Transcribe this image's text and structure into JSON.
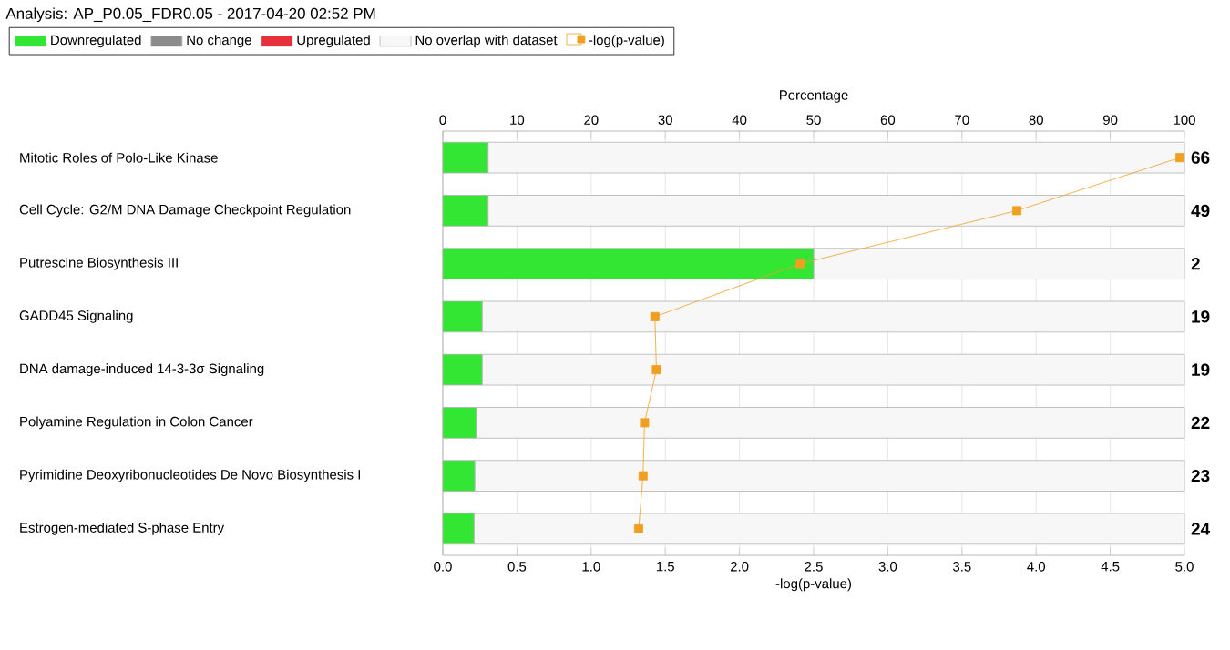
{
  "chart_data": {
    "type": "bar",
    "orientation": "horizontal",
    "stacked": true,
    "title": "Analysis: AP_P0.05_FDR0.05 - 2017-04-20 02:52 PM",
    "xlabel": "Percentage",
    "x2label": "-log(p-value)",
    "categories": [
      "Mitotic Roles of Polo-Like Kinase",
      "Cell Cycle: G2/M DNA Damage Checkpoint Regulation",
      "Putrescine Biosynthesis III",
      "GADD45 Signaling",
      "DNA damage-induced 14-3-3σ Signaling",
      "Polyamine Regulation in Colon Cancer",
      "Pyrimidine Deoxyribonucleotides De Novo Biosynthesis I",
      "Estrogen-mediated S-phase Entry"
    ],
    "series": [
      {
        "name": "Downregulated",
        "color": "#33e633",
        "values": [
          6.1,
          6.1,
          50,
          5.3,
          5.3,
          4.5,
          4.3,
          4.2
        ]
      },
      {
        "name": "No change",
        "color": "#8c8c8c",
        "values": [
          0,
          0,
          0,
          0,
          0,
          0,
          0,
          0
        ]
      },
      {
        "name": "Upregulated",
        "color": "#e8303a",
        "values": [
          0,
          0,
          0,
          0,
          0,
          0,
          0,
          0
        ]
      },
      {
        "name": "No overlap with dataset",
        "color": "#f7f7f7",
        "values": [
          93.9,
          93.9,
          50,
          94.7,
          94.7,
          95.5,
          95.7,
          95.8
        ]
      },
      {
        "name": "-log(p-value)",
        "type": "line",
        "axis": "x2",
        "color": "#f0a020",
        "values": [
          4.97,
          3.87,
          2.41,
          1.43,
          1.44,
          1.36,
          1.35,
          1.32
        ]
      }
    ],
    "annotations": [
      "66",
      "49",
      "2",
      "19",
      "19",
      "22",
      "23",
      "24"
    ],
    "xlim": [
      0,
      100
    ],
    "xticks": [
      0,
      10,
      20,
      30,
      40,
      50,
      60,
      70,
      80,
      90,
      100
    ],
    "x2lim": [
      0,
      5
    ],
    "x2ticks": [
      {
        "value": 0,
        "label": "0.0"
      },
      {
        "value": 0.5,
        "label": "0.5"
      },
      {
        "value": 1,
        "label": "1.0"
      },
      {
        "value": 1.5,
        "label": "1.5"
      },
      {
        "value": 2,
        "label": "2.0"
      },
      {
        "value": 2.5,
        "label": "2.5"
      },
      {
        "value": 3,
        "label": "3.0"
      },
      {
        "value": 3.5,
        "label": "3.5"
      },
      {
        "value": 4,
        "label": "4.0"
      },
      {
        "value": 4.5,
        "label": "4.5"
      },
      {
        "value": 5,
        "label": "5.0"
      }
    ],
    "grid": "x",
    "legend": "top left",
    "marker": "square",
    "line_style": "solid"
  }
}
